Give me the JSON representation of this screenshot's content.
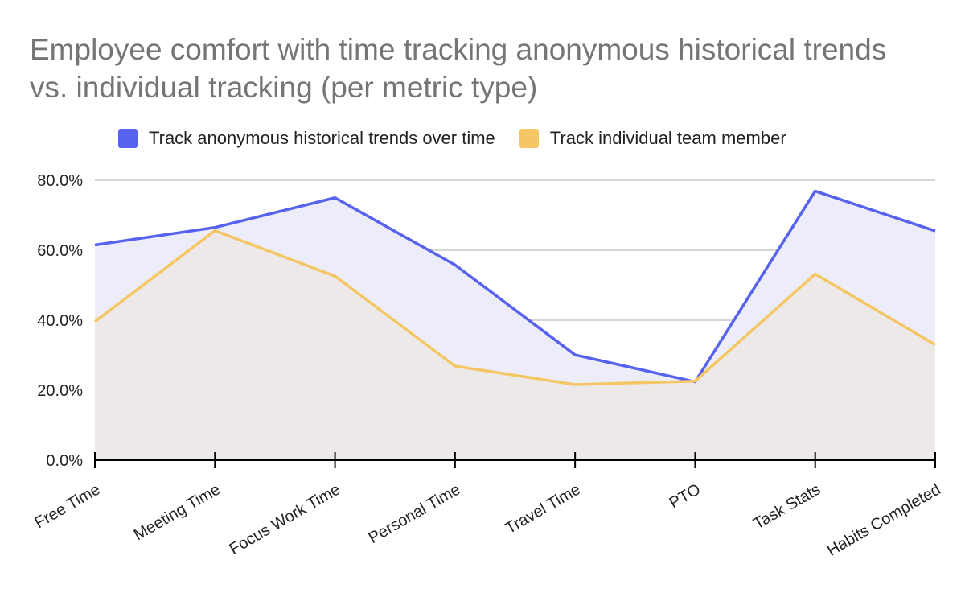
{
  "chart_data": {
    "type": "area",
    "title": "Employee comfort with time tracking anonymous historical trends vs. individual tracking (per metric type)",
    "categories": [
      "Free Time",
      "Meeting Time",
      "Focus Work Time",
      "Personal Time",
      "Travel Time",
      "PTO",
      "Task Stats",
      "Habits Completed"
    ],
    "series": [
      {
        "name": "Track anonymous historical trends over time",
        "color": "#5762ee",
        "fill": "#ecedf9",
        "values": [
          61.5,
          66.5,
          75.0,
          55.8,
          30.1,
          22.4,
          76.9,
          65.5
        ]
      },
      {
        "name": "Track individual team member",
        "color": "#f4c664",
        "fill": "#eee9e9",
        "values": [
          39.6,
          65.6,
          52.6,
          26.9,
          21.6,
          22.6,
          53.2,
          33.0
        ]
      }
    ],
    "ylim": [
      0,
      80
    ],
    "yticks": [
      "0.0%",
      "20.0%",
      "40.0%",
      "60.0%",
      "80.0%"
    ],
    "ytick_values": [
      0,
      20,
      40,
      60,
      80
    ],
    "grid": true,
    "legend_position": "top"
  }
}
